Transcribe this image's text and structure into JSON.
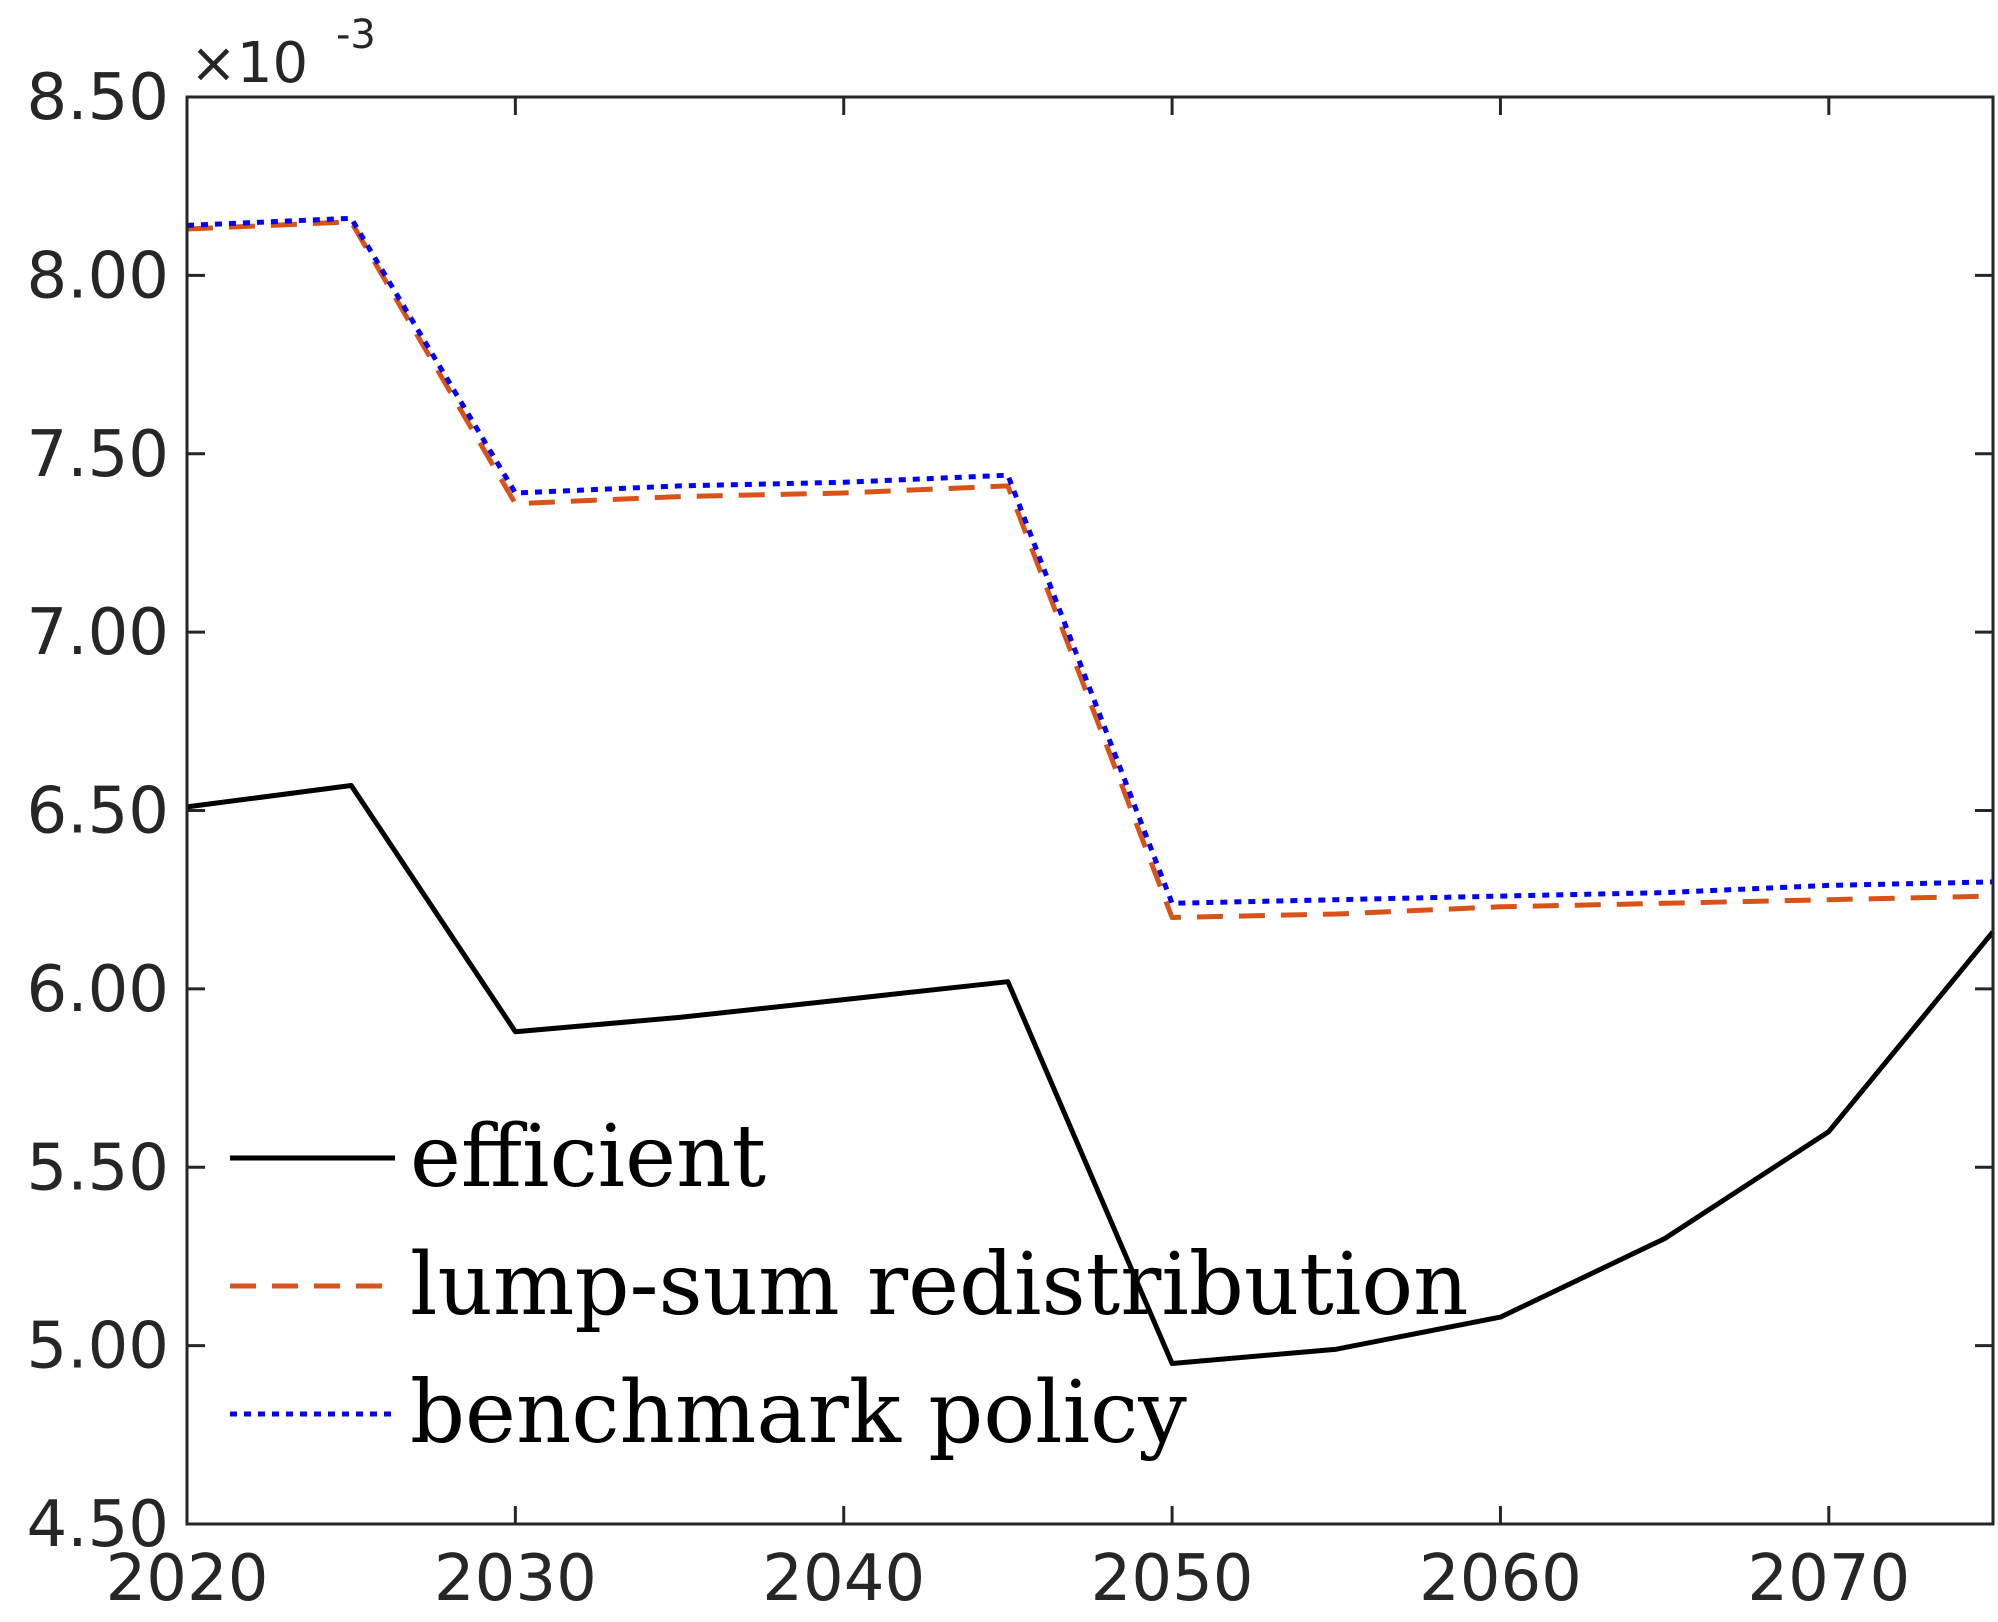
{
  "chart_data": {
    "type": "line",
    "title": "",
    "xlabel": "",
    "ylabel": "",
    "xlim": [
      2020,
      2075
    ],
    "ylim": [
      4.5,
      8.5
    ],
    "y_exponent_label": {
      "base": "×10",
      "exponent": "-3"
    },
    "x_ticks": [
      2020,
      2030,
      2040,
      2050,
      2060,
      2070
    ],
    "x_tick_labels": [
      "2020",
      "2030",
      "2040",
      "2050",
      "2060",
      "2070"
    ],
    "y_ticks": [
      4.5,
      5.0,
      5.5,
      6.0,
      6.5,
      7.0,
      7.5,
      8.0,
      8.5
    ],
    "y_tick_labels": [
      "4.50",
      "5.00",
      "5.50",
      "6.00",
      "6.50",
      "7.00",
      "7.50",
      "8.00",
      "8.50"
    ],
    "grid": false,
    "legend_position": "bottom-left",
    "series": [
      {
        "name": "efficient",
        "color": "#000000",
        "style": "solid",
        "x": [
          2020,
          2025,
          2030,
          2035,
          2040,
          2045,
          2050,
          2055,
          2060,
          2065,
          2070,
          2075
        ],
        "y": [
          6.51,
          6.57,
          5.88,
          5.92,
          5.97,
          6.02,
          4.95,
          4.99,
          5.08,
          5.3,
          5.6,
          6.16
        ]
      },
      {
        "name": "lump-sum redistribution",
        "color": "#D95319",
        "style": "dashed",
        "x": [
          2020,
          2025,
          2030,
          2035,
          2040,
          2045,
          2050,
          2055,
          2060,
          2065,
          2070,
          2075
        ],
        "y": [
          8.13,
          8.15,
          7.36,
          7.38,
          7.39,
          7.41,
          6.2,
          6.21,
          6.23,
          6.24,
          6.25,
          6.26
        ]
      },
      {
        "name": "benchmark policy",
        "color": "#0000FF",
        "style": "dotted",
        "x": [
          2020,
          2025,
          2030,
          2035,
          2040,
          2045,
          2050,
          2055,
          2060,
          2065,
          2070,
          2075
        ],
        "y": [
          8.14,
          8.16,
          7.39,
          7.41,
          7.42,
          7.44,
          6.24,
          6.25,
          6.26,
          6.27,
          6.29,
          6.3
        ]
      }
    ]
  }
}
